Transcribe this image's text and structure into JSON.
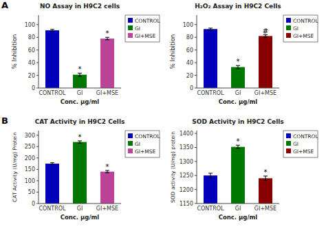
{
  "panel_labels": [
    "A",
    "B"
  ],
  "chart_data": [
    {
      "type": "bar",
      "title": "NO Assay in H9C2 cells",
      "x_label": "Conc. μg/ml",
      "y_label": "% Inhibition",
      "categories": [
        "CONTROL",
        "GI",
        "GI+MSE"
      ],
      "values": [
        91,
        21,
        78
      ],
      "errors": [
        1.5,
        2.5,
        2.0
      ],
      "colors": [
        "#0000BB",
        "#007700",
        "#BB4499"
      ],
      "ylim": [
        0,
        115
      ],
      "yticks": [
        0,
        20,
        40,
        60,
        80,
        100
      ],
      "grid": false,
      "legend": "right",
      "annotations": [
        {
          "text": "*",
          "category": "GI"
        },
        {
          "text": "*",
          "category": "GI+MSE"
        }
      ]
    },
    {
      "type": "bar",
      "title": "H₂O₂ Assay in H9C2 Cells",
      "x_label": "Conc. μg/ml",
      "y_label": "% Inhibition",
      "categories": [
        "CONTROL",
        "GI",
        "GI+MSE"
      ],
      "values": [
        93,
        33,
        82
      ],
      "errors": [
        1.5,
        2.5,
        2.0
      ],
      "colors": [
        "#0000BB",
        "#007700",
        "#880000"
      ],
      "ylim": [
        0,
        115
      ],
      "yticks": [
        0,
        20,
        40,
        60,
        80,
        100
      ],
      "grid": false,
      "legend": "right",
      "annotations": [
        {
          "text": "*",
          "category": "GI"
        },
        {
          "text": "#",
          "category": "GI+MSE"
        }
      ]
    },
    {
      "type": "bar",
      "title": "CAT Activity in H9C2 Cells",
      "x_label": "Conc. μg/ml",
      "y_label": "CAT Activity (U/mg) Protein",
      "categories": [
        "CONTROL",
        "GI",
        "GI+MSE"
      ],
      "values": [
        175,
        270,
        140
      ],
      "errors": [
        4,
        5,
        5
      ],
      "colors": [
        "#0000BB",
        "#007700",
        "#BB4499"
      ],
      "ylim": [
        0,
        320
      ],
      "yticks": [
        0,
        50,
        100,
        150,
        200,
        250,
        300
      ],
      "grid": false,
      "legend": "right",
      "annotations": [
        {
          "text": "*",
          "category": "GI"
        },
        {
          "text": "*",
          "category": "GI+MSE"
        }
      ]
    },
    {
      "type": "bar",
      "title": "SOD Activity in H9C2 Cells",
      "x_label": "Conc. μg/ml",
      "y_label": "SOD activity (U/mg) protein",
      "categories": [
        "CONTROL",
        "GI",
        "GI+MSE"
      ],
      "values": [
        1250,
        1352,
        1240
      ],
      "errors": [
        8,
        6,
        8
      ],
      "colors": [
        "#0000BB",
        "#007700",
        "#880000"
      ],
      "ylim": [
        1150,
        1410
      ],
      "yticks": [
        1150,
        1200,
        1250,
        1300,
        1350,
        1400
      ],
      "grid": false,
      "legend": "right",
      "annotations": [
        {
          "text": "*",
          "category": "GI"
        },
        {
          "text": "*",
          "category": "GI+MSE"
        }
      ]
    }
  ]
}
